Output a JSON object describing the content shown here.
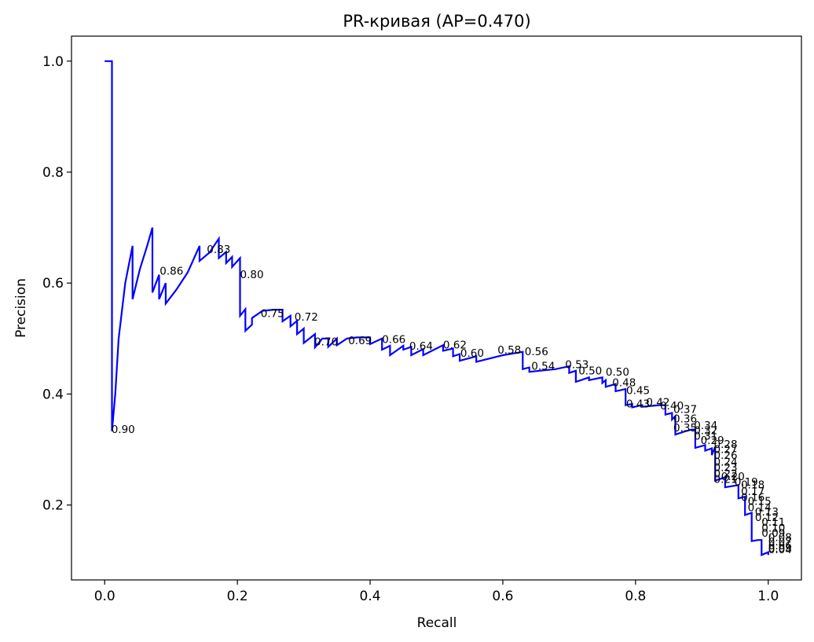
{
  "chart_data": {
    "type": "line",
    "title": "PR-кривая (AP=0.470)",
    "xlabel": "Recall",
    "ylabel": "Precision",
    "xlim": [
      -0.05,
      1.05
    ],
    "ylim": [
      0.065,
      1.045
    ],
    "xticks": [
      "0.0",
      "0.2",
      "0.4",
      "0.6",
      "0.8",
      "1.0"
    ],
    "yticks": [
      "0.2",
      "0.4",
      "0.6",
      "0.8",
      "1.0"
    ],
    "grid": false,
    "line_color": "#0000ff",
    "series": [
      {
        "recall": [
          0.0,
          0.011,
          0.011,
          0.016,
          0.021,
          0.031,
          0.042,
          0.042,
          0.053,
          0.064,
          0.072,
          0.072,
          0.082,
          0.082,
          0.092,
          0.092,
          0.108,
          0.125,
          0.143,
          0.143,
          0.158,
          0.172,
          0.172,
          0.183,
          0.183,
          0.192,
          0.192,
          0.204,
          0.204,
          0.212,
          0.212,
          0.222,
          0.222,
          0.238,
          0.255,
          0.268,
          0.268,
          0.28,
          0.28,
          0.29,
          0.29,
          0.3,
          0.3,
          0.317,
          0.317,
          0.328,
          0.337,
          0.337,
          0.35,
          0.35,
          0.365,
          0.38,
          0.4,
          0.4,
          0.418,
          0.418,
          0.43,
          0.43,
          0.45,
          0.45,
          0.462,
          0.462,
          0.48,
          0.48,
          0.51,
          0.51,
          0.525,
          0.525,
          0.535,
          0.535,
          0.56,
          0.56,
          0.6,
          0.63,
          0.63,
          0.64,
          0.64,
          0.68,
          0.7,
          0.7,
          0.71,
          0.71,
          0.73,
          0.73,
          0.75,
          0.75,
          0.755,
          0.755,
          0.77,
          0.77,
          0.785,
          0.785,
          0.795,
          0.795,
          0.81,
          0.81,
          0.835,
          0.845,
          0.845,
          0.855,
          0.855,
          0.86,
          0.86,
          0.875,
          0.885,
          0.89,
          0.89,
          0.905,
          0.905,
          0.915,
          0.915,
          0.92,
          0.92,
          0.935,
          0.935,
          0.955,
          0.955,
          0.965,
          0.965,
          0.975,
          0.975,
          0.985,
          0.99,
          0.99,
          1.0,
          1.0
        ],
        "precision": [
          1.0,
          1.0,
          0.333,
          0.4,
          0.5,
          0.6,
          0.667,
          0.571,
          0.625,
          0.667,
          0.7,
          0.583,
          0.615,
          0.571,
          0.6,
          0.563,
          0.588,
          0.619,
          0.667,
          0.64,
          0.655,
          0.68,
          0.645,
          0.656,
          0.636,
          0.647,
          0.629,
          0.645,
          0.541,
          0.553,
          0.514,
          0.525,
          0.537,
          0.55,
          0.552,
          0.552,
          0.531,
          0.541,
          0.522,
          0.532,
          0.508,
          0.518,
          0.492,
          0.508,
          0.484,
          0.5,
          0.5,
          0.485,
          0.5,
          0.488,
          0.5,
          0.502,
          0.502,
          0.49,
          0.5,
          0.48,
          0.487,
          0.47,
          0.487,
          0.48,
          0.485,
          0.47,
          0.481,
          0.47,
          0.488,
          0.478,
          0.482,
          0.468,
          0.472,
          0.46,
          0.468,
          0.458,
          0.47,
          0.476,
          0.445,
          0.448,
          0.44,
          0.445,
          0.45,
          0.438,
          0.442,
          0.422,
          0.43,
          0.425,
          0.43,
          0.42,
          0.425,
          0.413,
          0.418,
          0.405,
          0.409,
          0.38,
          0.382,
          0.376,
          0.38,
          0.377,
          0.38,
          0.38,
          0.363,
          0.366,
          0.354,
          0.36,
          0.327,
          0.333,
          0.336,
          0.336,
          0.303,
          0.308,
          0.298,
          0.302,
          0.29,
          0.305,
          0.244,
          0.25,
          0.232,
          0.236,
          0.212,
          0.215,
          0.182,
          0.186,
          0.135,
          0.137,
          0.137,
          0.11,
          0.115,
          0.11
        ]
      }
    ],
    "threshold_labels": [
      {
        "text": "0.90",
        "recall": 0.01,
        "precision": 0.33
      },
      {
        "text": "0.86",
        "recall": 0.083,
        "precision": 0.615
      },
      {
        "text": "0.83",
        "recall": 0.154,
        "precision": 0.654
      },
      {
        "text": "0.80",
        "recall": 0.204,
        "precision": 0.609
      },
      {
        "text": "0.75",
        "recall": 0.235,
        "precision": 0.539
      },
      {
        "text": "0.72",
        "recall": 0.286,
        "precision": 0.532
      },
      {
        "text": "0.70",
        "recall": 0.316,
        "precision": 0.488
      },
      {
        "text": "0.69",
        "recall": 0.367,
        "precision": 0.49
      },
      {
        "text": "0.66",
        "recall": 0.418,
        "precision": 0.492
      },
      {
        "text": "0.64",
        "recall": 0.459,
        "precision": 0.48
      },
      {
        "text": "0.62",
        "recall": 0.51,
        "precision": 0.482
      },
      {
        "text": "0.60",
        "recall": 0.536,
        "precision": 0.467
      },
      {
        "text": "0.58",
        "recall": 0.592,
        "precision": 0.473
      },
      {
        "text": "0.56",
        "recall": 0.633,
        "precision": 0.47
      },
      {
        "text": "0.54",
        "recall": 0.643,
        "precision": 0.444
      },
      {
        "text": "0.53",
        "recall": 0.694,
        "precision": 0.447
      },
      {
        "text": "0.50",
        "recall": 0.714,
        "precision": 0.435
      },
      {
        "text": "0.50",
        "recall": 0.755,
        "precision": 0.433
      },
      {
        "text": "0.48",
        "recall": 0.765,
        "precision": 0.414
      },
      {
        "text": "0.45",
        "recall": 0.786,
        "precision": 0.4
      },
      {
        "text": "0.43",
        "recall": 0.786,
        "precision": 0.376
      },
      {
        "text": "0.42",
        "recall": 0.816,
        "precision": 0.379
      },
      {
        "text": "0.40",
        "recall": 0.837,
        "precision": 0.372
      },
      {
        "text": "0.37",
        "recall": 0.857,
        "precision": 0.366
      },
      {
        "text": "0.36",
        "recall": 0.857,
        "precision": 0.349
      },
      {
        "text": "0.35",
        "recall": 0.857,
        "precision": 0.333
      },
      {
        "text": "0.34",
        "recall": 0.888,
        "precision": 0.337
      },
      {
        "text": "0.32",
        "recall": 0.888,
        "precision": 0.328
      },
      {
        "text": "0.31",
        "recall": 0.888,
        "precision": 0.318
      },
      {
        "text": "0.29",
        "recall": 0.898,
        "precision": 0.31
      },
      {
        "text": "0.28",
        "recall": 0.918,
        "precision": 0.303
      },
      {
        "text": "0.27",
        "recall": 0.918,
        "precision": 0.294
      },
      {
        "text": "0.26",
        "recall": 0.918,
        "precision": 0.283
      },
      {
        "text": "0.24",
        "recall": 0.918,
        "precision": 0.271
      },
      {
        "text": "0.23",
        "recall": 0.918,
        "precision": 0.261
      },
      {
        "text": "0.22",
        "recall": 0.918,
        "precision": 0.25
      },
      {
        "text": "0.21",
        "recall": 0.918,
        "precision": 0.24
      },
      {
        "text": "0.20",
        "recall": 0.929,
        "precision": 0.245
      },
      {
        "text": "0.19",
        "recall": 0.949,
        "precision": 0.235
      },
      {
        "text": "0.18",
        "recall": 0.959,
        "precision": 0.23
      },
      {
        "text": "0.17",
        "recall": 0.959,
        "precision": 0.218
      },
      {
        "text": "0.16",
        "recall": 0.959,
        "precision": 0.207
      },
      {
        "text": "0.15",
        "recall": 0.969,
        "precision": 0.2
      },
      {
        "text": "0.14",
        "recall": 0.969,
        "precision": 0.189
      },
      {
        "text": "0.13",
        "recall": 0.98,
        "precision": 0.181
      },
      {
        "text": "0.12",
        "recall": 0.98,
        "precision": 0.171
      },
      {
        "text": "0.11",
        "recall": 0.99,
        "precision": 0.163
      },
      {
        "text": "0.10",
        "recall": 0.99,
        "precision": 0.152
      },
      {
        "text": "0.09",
        "recall": 0.99,
        "precision": 0.143
      },
      {
        "text": "0.08",
        "recall": 1.0,
        "precision": 0.135
      },
      {
        "text": "0.07",
        "recall": 1.0,
        "precision": 0.127
      },
      {
        "text": "0.06",
        "recall": 1.0,
        "precision": 0.12
      },
      {
        "text": "0.05",
        "recall": 1.0,
        "precision": 0.115
      },
      {
        "text": "0.04",
        "recall": 1.0,
        "precision": 0.113
      }
    ]
  }
}
